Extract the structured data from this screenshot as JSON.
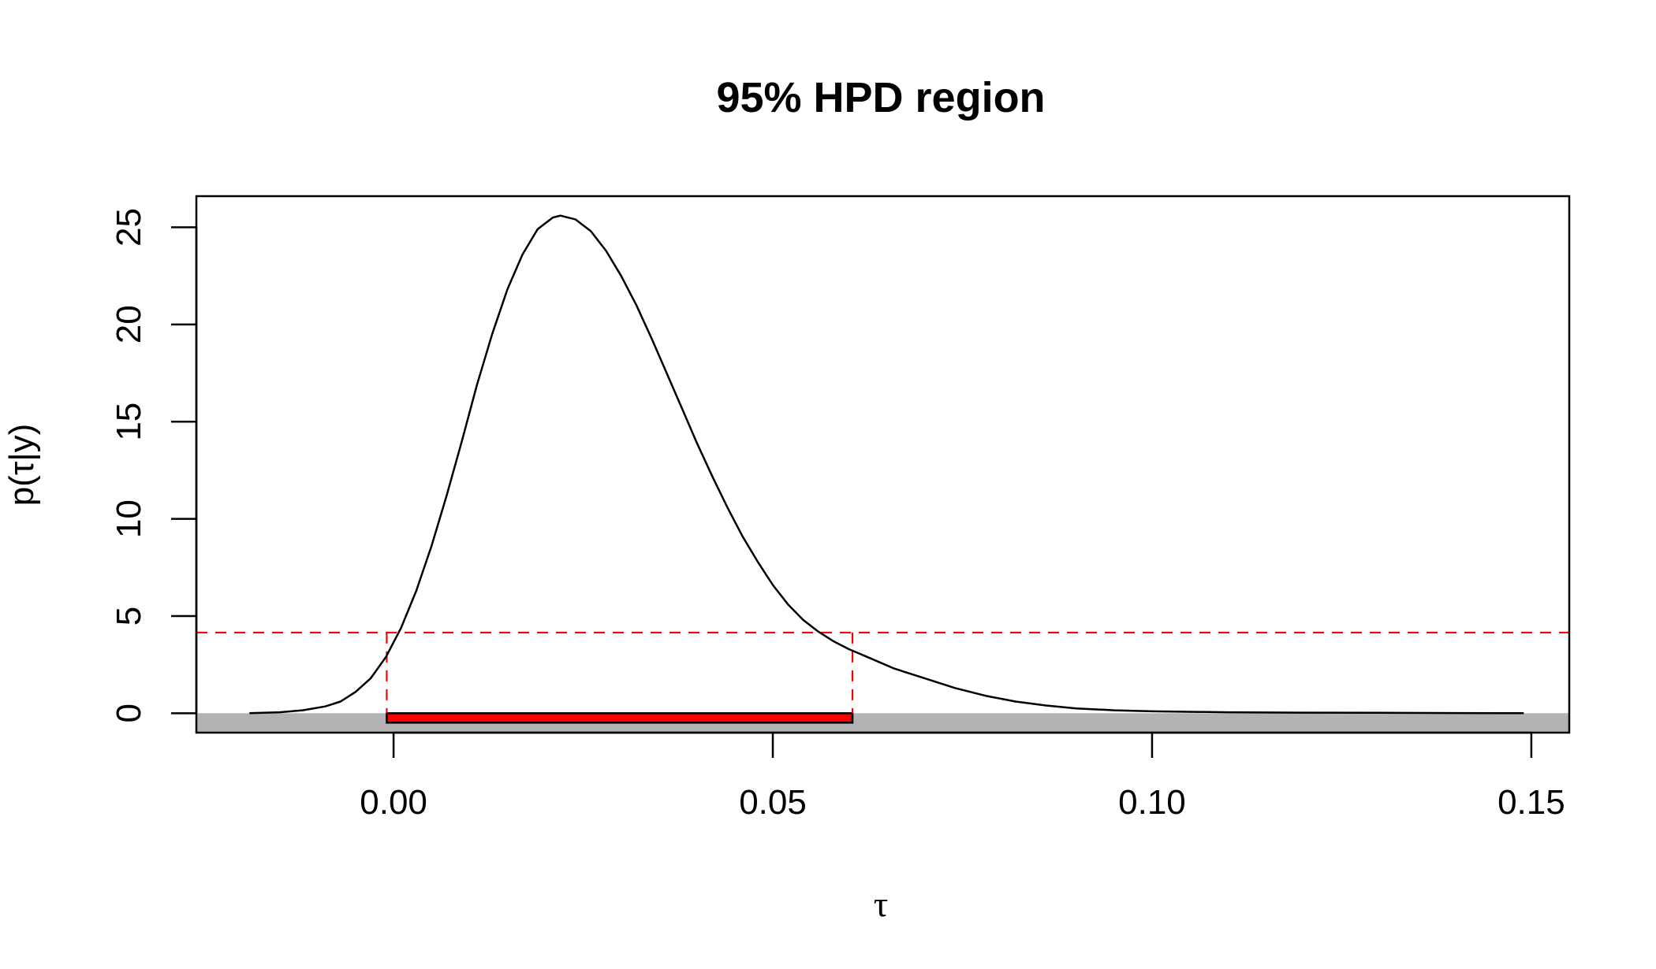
{
  "chart_data": {
    "type": "line",
    "title": "95% HPD region",
    "xlabel": "τ",
    "ylabel": "p(τ|y)",
    "xlim": [
      -0.026,
      0.155
    ],
    "ylim": [
      -1.0,
      26.6
    ],
    "x_ticks": [
      0.0,
      0.05,
      0.1,
      0.15
    ],
    "x_tick_labels": [
      "0.00",
      "0.05",
      "0.10",
      "0.15"
    ],
    "y_ticks": [
      0,
      5,
      10,
      15,
      20,
      25
    ],
    "y_tick_labels": [
      "0",
      "5",
      "10",
      "15",
      "20",
      "25"
    ],
    "grid": false,
    "legend": "none",
    "series": [
      {
        "color": "#000000",
        "points": [
          [
            -0.019,
            0.0
          ],
          [
            -0.015,
            0.05
          ],
          [
            -0.012,
            0.15
          ],
          [
            -0.009,
            0.35
          ],
          [
            -0.007,
            0.6
          ],
          [
            -0.005,
            1.1
          ],
          [
            -0.003,
            1.8
          ],
          [
            -0.001,
            2.9
          ],
          [
            0.001,
            4.4
          ],
          [
            0.003,
            6.3
          ],
          [
            0.005,
            8.6
          ],
          [
            0.007,
            11.2
          ],
          [
            0.009,
            14.0
          ],
          [
            0.011,
            16.9
          ],
          [
            0.013,
            19.5
          ],
          [
            0.015,
            21.8
          ],
          [
            0.017,
            23.6
          ],
          [
            0.019,
            24.9
          ],
          [
            0.021,
            25.5
          ],
          [
            0.022,
            25.6
          ],
          [
            0.024,
            25.4
          ],
          [
            0.026,
            24.8
          ],
          [
            0.028,
            23.8
          ],
          [
            0.03,
            22.5
          ],
          [
            0.032,
            21.0
          ],
          [
            0.034,
            19.3
          ],
          [
            0.036,
            17.5
          ],
          [
            0.038,
            15.7
          ],
          [
            0.04,
            13.9
          ],
          [
            0.042,
            12.2
          ],
          [
            0.044,
            10.6
          ],
          [
            0.046,
            9.1
          ],
          [
            0.048,
            7.8
          ],
          [
            0.05,
            6.6
          ],
          [
            0.052,
            5.6
          ],
          [
            0.054,
            4.8
          ],
          [
            0.056,
            4.2
          ],
          [
            0.058,
            3.7
          ],
          [
            0.06,
            3.3
          ],
          [
            0.063,
            2.8
          ],
          [
            0.066,
            2.3
          ],
          [
            0.07,
            1.8
          ],
          [
            0.074,
            1.3
          ],
          [
            0.078,
            0.9
          ],
          [
            0.082,
            0.6
          ],
          [
            0.086,
            0.4
          ],
          [
            0.09,
            0.25
          ],
          [
            0.095,
            0.15
          ],
          [
            0.1,
            0.1
          ],
          [
            0.11,
            0.05
          ],
          [
            0.12,
            0.03
          ],
          [
            0.13,
            0.02
          ],
          [
            0.14,
            0.01
          ],
          [
            0.149,
            0.0
          ]
        ]
      }
    ],
    "hpd_threshold": 4.15,
    "hpd_interval": [
      -0.0009,
      0.0605
    ],
    "colors": {
      "curve": "#000000",
      "threshold": "#ff0000",
      "hpd_bar": "#ff0000",
      "baseline_band": "#b3b3b3"
    }
  }
}
